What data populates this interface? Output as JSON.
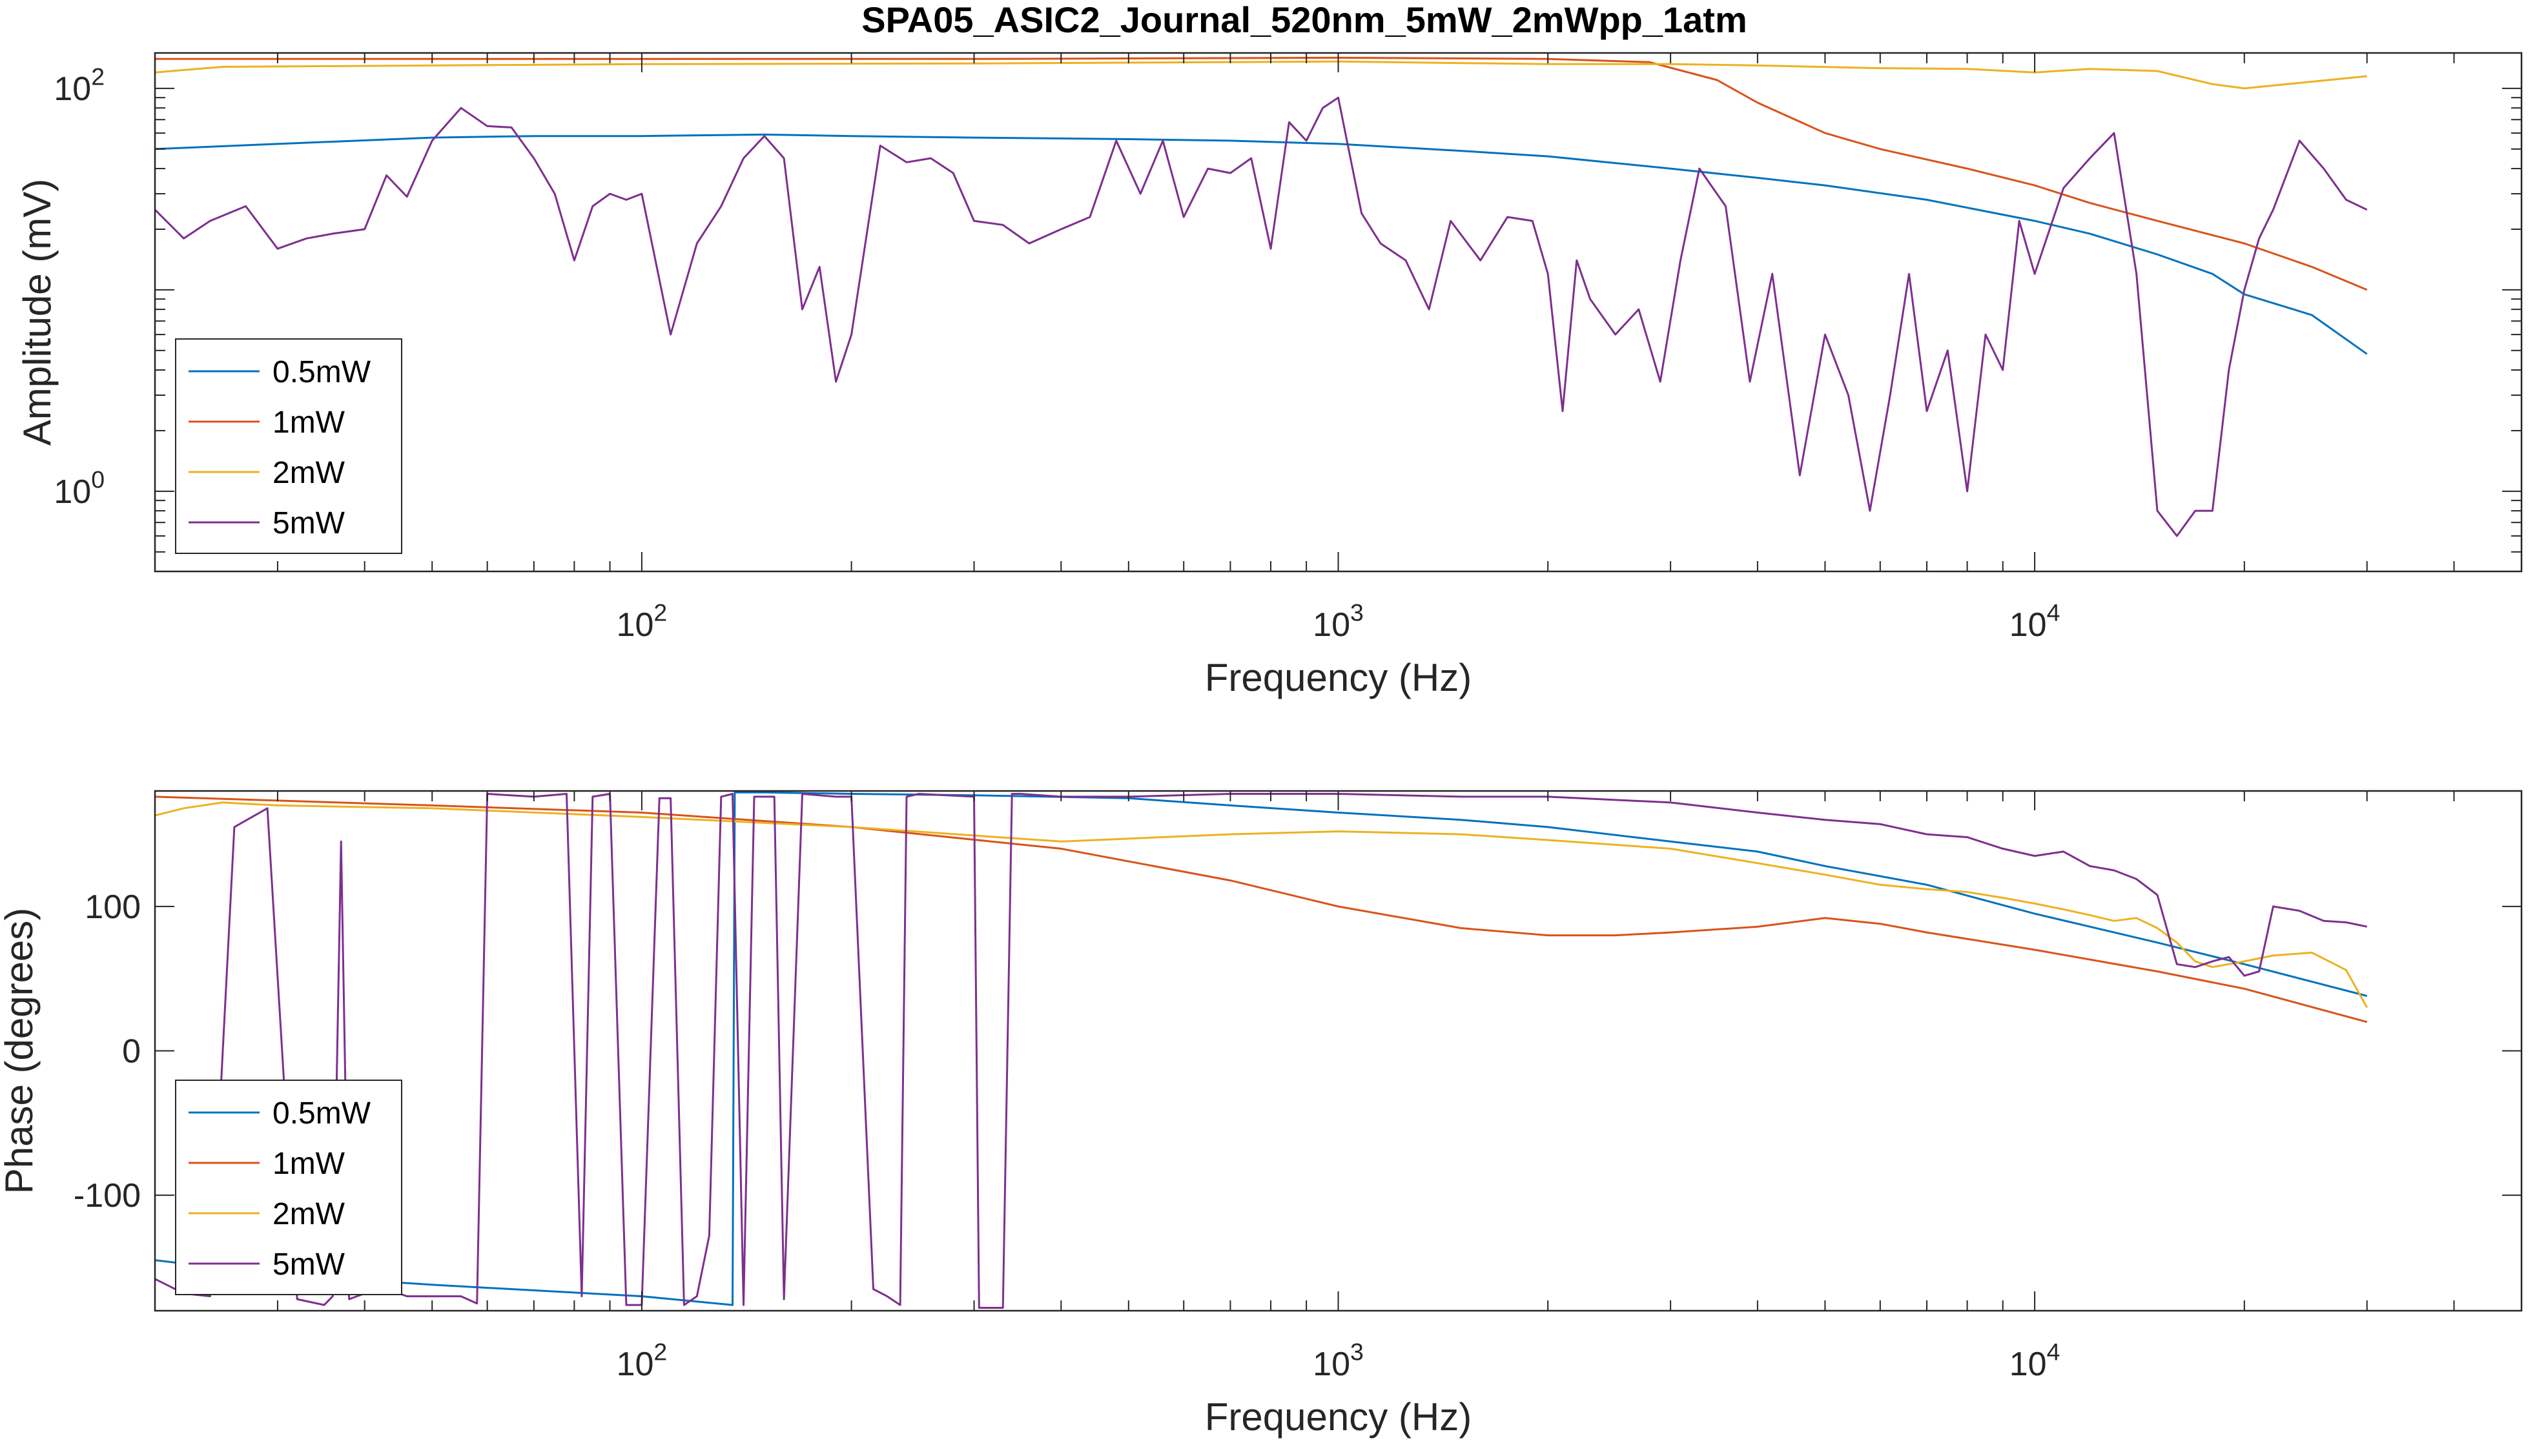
{
  "title": "SPA05_ASIC2_Journal_520nm_5mW_2mWpp_1atm",
  "colors": {
    "0.5mW": "#0072BD",
    "1mW": "#D95319",
    "2mW": "#EDB120",
    "5mW": "#7E2F8E",
    "axis": "#262626"
  },
  "chart_data": [
    {
      "type": "line",
      "xscale": "log",
      "yscale": "log",
      "xlim": [
        20,
        50000
      ],
      "ylim": [
        0.4,
        150
      ],
      "xlabel": "Frequency (Hz)",
      "ylabel": "Amplitude (mV)",
      "xticks": [
        {
          "value": 100,
          "base": "10",
          "exp": "2"
        },
        {
          "value": 1000,
          "base": "10",
          "exp": "3"
        },
        {
          "value": 10000,
          "base": "10",
          "exp": "4"
        }
      ],
      "yticks": [
        {
          "value": 1,
          "base": "10",
          "exp": "0"
        },
        {
          "value": 100,
          "base": "10",
          "exp": "2"
        }
      ],
      "legend": {
        "location": "lower-left",
        "entries": [
          "0.5mW",
          "1mW",
          "2mW",
          "5mW"
        ]
      },
      "series": [
        {
          "name": "0.5mW",
          "x": [
            20,
            30,
            50,
            70,
            100,
            150,
            200,
            300,
            500,
            700,
            1000,
            1500,
            2000,
            3000,
            4000,
            5000,
            7000,
            10000,
            12000,
            15000,
            18000,
            20000,
            25000,
            30000
          ],
          "y": [
            50,
            53,
            57,
            58,
            58,
            59,
            58,
            57,
            56,
            55,
            53,
            49,
            46,
            40,
            36,
            33,
            28,
            22,
            19,
            15,
            12,
            9.5,
            7.5,
            4.8
          ]
        },
        {
          "name": "1mW",
          "x": [
            20,
            50,
            100,
            300,
            1000,
            2000,
            2800,
            3500,
            4000,
            5000,
            6000,
            8000,
            10000,
            12000,
            15000,
            20000,
            25000,
            30000
          ],
          "y": [
            140,
            140,
            140,
            140,
            142,
            140,
            135,
            110,
            85,
            60,
            50,
            40,
            33,
            27,
            22,
            17,
            13,
            10
          ]
        },
        {
          "name": "2mW",
          "x": [
            20,
            25,
            50,
            100,
            300,
            1000,
            2000,
            3000,
            4000,
            6000,
            8000,
            10000,
            12000,
            15000,
            18000,
            20000,
            25000,
            30000
          ],
          "y": [
            120,
            128,
            130,
            132,
            133,
            136,
            132,
            132,
            130,
            126,
            125,
            120,
            125,
            122,
            105,
            100,
            108,
            115
          ]
        },
        {
          "name": "5mW",
          "x": [
            20,
            22,
            24,
            27,
            30,
            33,
            36,
            40,
            43,
            46,
            50,
            55,
            60,
            65,
            70,
            75,
            80,
            85,
            90,
            95,
            100,
            110,
            120,
            130,
            140,
            150,
            160,
            170,
            180,
            190,
            200,
            220,
            240,
            260,
            280,
            300,
            330,
            360,
            400,
            440,
            480,
            520,
            560,
            600,
            650,
            700,
            750,
            800,
            850,
            900,
            950,
            1000,
            1080,
            1150,
            1250,
            1350,
            1450,
            1600,
            1750,
            1900,
            2000,
            2100,
            2200,
            2300,
            2500,
            2700,
            2900,
            3100,
            3300,
            3600,
            3900,
            4200,
            4600,
            5000,
            5400,
            5800,
            6200,
            6600,
            7000,
            7500,
            8000,
            8500,
            9000,
            9500,
            10000,
            11000,
            12000,
            13000,
            14000,
            15000,
            16000,
            17000,
            18000,
            19000,
            20000,
            21000,
            22000,
            24000,
            26000,
            28000,
            30000
          ],
          "y": [
            25,
            18,
            22,
            26,
            16,
            18,
            19,
            20,
            37,
            29,
            55,
            80,
            65,
            64,
            45,
            30,
            14,
            26,
            30,
            28,
            30,
            6,
            17,
            26,
            45,
            58,
            45,
            8,
            13,
            3.5,
            6,
            52,
            43,
            45,
            38,
            22,
            21,
            17,
            20,
            23,
            55,
            30,
            55,
            23,
            40,
            38,
            45,
            16,
            68,
            55,
            80,
            90,
            24,
            17,
            14,
            8,
            22,
            14,
            23,
            22,
            12,
            2.5,
            14,
            9,
            6,
            8,
            3.5,
            14,
            40,
            26,
            3.5,
            12,
            1.2,
            6,
            3,
            0.8,
            3,
            12,
            2.5,
            5,
            1,
            6,
            4,
            22,
            12,
            32,
            45,
            60,
            12,
            0.8,
            0.6,
            0.8,
            0.8,
            4,
            10,
            18,
            25,
            55,
            40,
            28,
            25
          ]
        }
      ]
    },
    {
      "type": "line",
      "xscale": "log",
      "yscale": "linear",
      "xlim": [
        20,
        50000
      ],
      "ylim": [
        -180,
        180
      ],
      "xlabel": "Frequency (Hz)",
      "ylabel": "Phase (degrees)",
      "xticks": [
        {
          "value": 100,
          "base": "10",
          "exp": "2"
        },
        {
          "value": 1000,
          "base": "10",
          "exp": "3"
        },
        {
          "value": 10000,
          "base": "10",
          "exp": "4"
        }
      ],
      "yticks": [
        {
          "value": -100,
          "label": "-100"
        },
        {
          "value": 0,
          "label": "0"
        },
        {
          "value": 100,
          "label": "100"
        }
      ],
      "legend": {
        "location": "lower-left",
        "entries": [
          "0.5mW",
          "1mW",
          "2mW",
          "5mW"
        ]
      },
      "series": [
        {
          "name": "0.5mW",
          "x": [
            20,
            30,
            50,
            100,
            135,
            136,
            150,
            200,
            300,
            500,
            700,
            1000,
            1500,
            2000,
            3000,
            4000,
            5000,
            7000,
            10000,
            15000,
            20000,
            30000
          ],
          "y": [
            -145,
            -155,
            -162,
            -170,
            -176,
            179,
            179,
            178,
            177,
            175,
            170,
            165,
            160,
            155,
            145,
            138,
            128,
            115,
            95,
            75,
            60,
            38
          ]
        },
        {
          "name": "1mW",
          "x": [
            20,
            50,
            100,
            200,
            400,
            700,
            1000,
            1500,
            2000,
            2500,
            3000,
            4000,
            5000,
            6000,
            7000,
            10000,
            15000,
            20000,
            30000
          ],
          "y": [
            176,
            170,
            165,
            155,
            140,
            118,
            100,
            85,
            80,
            80,
            82,
            86,
            92,
            88,
            82,
            70,
            55,
            43,
            20
          ]
        },
        {
          "name": "2mW",
          "x": [
            20,
            22,
            25,
            30,
            50,
            100,
            200,
            400,
            700,
            1000,
            1500,
            2000,
            3000,
            4000,
            5000,
            6000,
            7000,
            8000,
            9000,
            10000,
            11000,
            12000,
            13000,
            14000,
            15000,
            16000,
            17000,
            18000,
            20000,
            22000,
            25000,
            28000,
            30000
          ],
          "y": [
            163,
            168,
            172,
            170,
            168,
            162,
            155,
            145,
            150,
            152,
            150,
            146,
            140,
            130,
            122,
            115,
            112,
            110,
            106,
            102,
            98,
            94,
            90,
            92,
            85,
            75,
            62,
            58,
            62,
            66,
            68,
            56,
            30
          ]
        },
        {
          "name": "5mW",
          "x": [
            20,
            22,
            24,
            26,
            29,
            32,
            35,
            36,
            37,
            38,
            40,
            43,
            46,
            50,
            55,
            58,
            60,
            70,
            78,
            82,
            85,
            90,
            95,
            100,
            106,
            110,
            115,
            120,
            125,
            130,
            135,
            140,
            145,
            150,
            155,
            160,
            170,
            190,
            200,
            215,
            225,
            235,
            240,
            250,
            300,
            305,
            330,
            340,
            350,
            400,
            500,
            700,
            1000,
            1500,
            2000,
            3000,
            4000,
            5000,
            6000,
            7000,
            8000,
            9000,
            10000,
            11000,
            12000,
            13000,
            14000,
            15000,
            16000,
            17000,
            18000,
            19000,
            20000,
            21000,
            22000,
            24000,
            26000,
            28000,
            30000
          ],
          "y": [
            -158,
            -168,
            -170,
            155,
            168,
            -172,
            -176,
            -170,
            145,
            -172,
            -168,
            -165,
            -170,
            -170,
            -170,
            -175,
            178,
            176,
            178,
            -170,
            176,
            178,
            -176,
            -176,
            175,
            175,
            -176,
            -170,
            -128,
            176,
            178,
            -176,
            176,
            176,
            176,
            -172,
            178,
            176,
            176,
            -165,
            -170,
            -176,
            176,
            178,
            176,
            -178,
            -178,
            178,
            178,
            176,
            176,
            178,
            178,
            176,
            176,
            172,
            165,
            160,
            157,
            150,
            148,
            140,
            135,
            138,
            128,
            125,
            119,
            108,
            60,
            58,
            62,
            65,
            52,
            55,
            100,
            97,
            90,
            89,
            86
          ]
        }
      ]
    }
  ]
}
